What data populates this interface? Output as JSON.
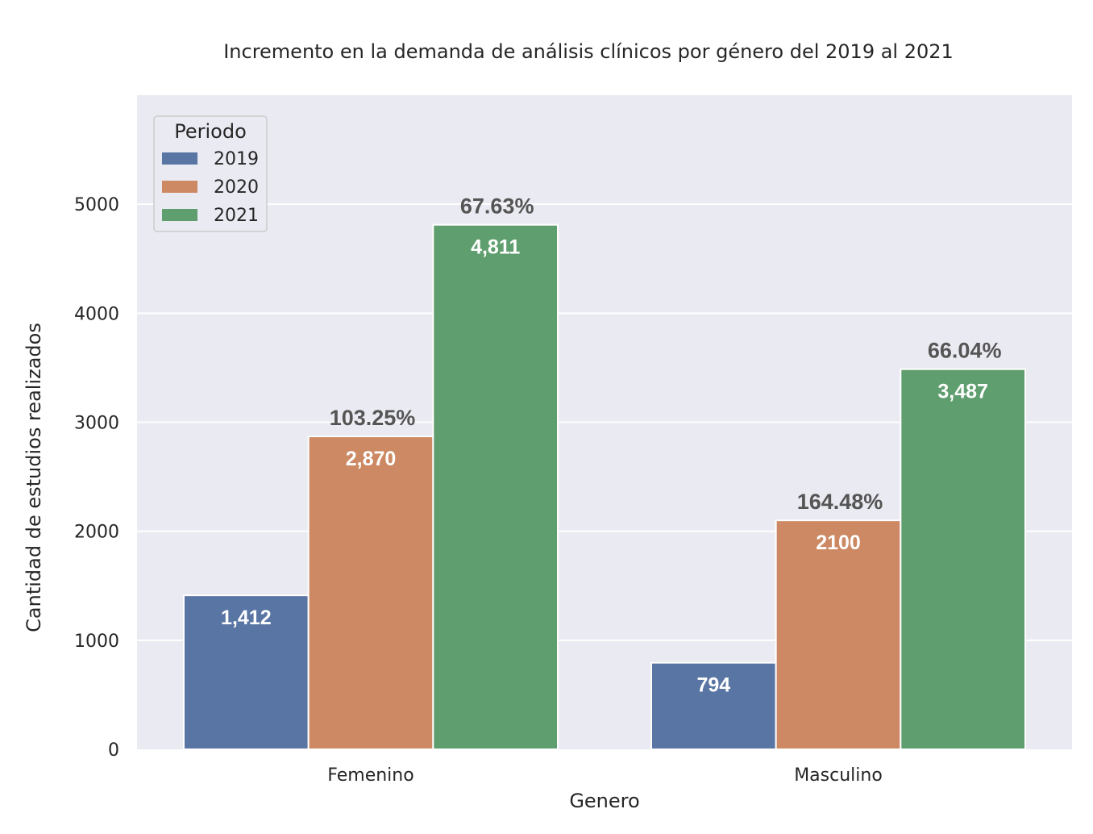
{
  "chart_data": {
    "type": "bar",
    "title": "Incremento en la demanda de análisis clínicos por género del 2019 al 2021",
    "xlabel": "Genero",
    "ylabel": "Cantidad de estudios realizados",
    "categories": [
      "Femenino",
      "Masculino"
    ],
    "ylim": [
      0,
      6000
    ],
    "yticks": [
      0,
      1000,
      2000,
      3000,
      4000,
      5000
    ],
    "grid": true,
    "legend": {
      "title": "Periodo",
      "placement": "top-left"
    },
    "series": [
      {
        "name": "2019",
        "color": "#5975a4",
        "values": [
          1412,
          794
        ],
        "value_labels": [
          "1,412",
          "794"
        ],
        "pct_labels": [
          "",
          ""
        ]
      },
      {
        "name": "2020",
        "color": "#cc8963",
        "values": [
          2870,
          2100
        ],
        "value_labels": [
          "2,870",
          "2100"
        ],
        "pct_labels": [
          "103.25%",
          "164.48%"
        ]
      },
      {
        "name": "2021",
        "color": "#5f9e6e",
        "values": [
          4811,
          3487
        ],
        "value_labels": [
          "4,811",
          "3,487"
        ],
        "pct_labels": [
          "67.63%",
          "66.04%"
        ]
      }
    ]
  },
  "colors": {
    "plot_background": "#eaeaf2",
    "grid": "#ffffff",
    "text": "#262626",
    "pct_text": "#555555",
    "value_text": "#ffffff"
  }
}
